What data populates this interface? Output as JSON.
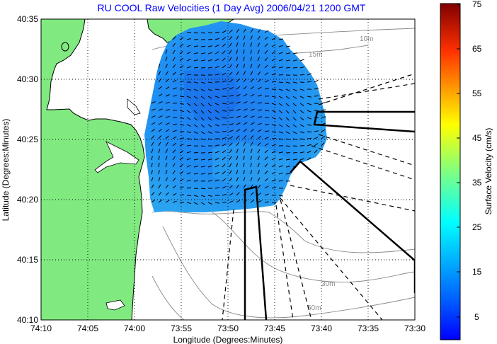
{
  "map": {
    "title": "RU COOL Raw Velocities (1 Day Avg) 2006/04/21 1200 GMT",
    "xlabel": "Longitude (Degrees:Minutes)",
    "ylabel": "Latitude (Degrees:Minutes)",
    "x_ticks": [
      "74:10",
      "74:05",
      "74:00",
      "73:55",
      "73:50",
      "73:45",
      "73:40",
      "73:35",
      "73:30"
    ],
    "y_ticks": [
      "40:35",
      "40:30",
      "40:25",
      "40:20",
      "40:15",
      "40:10"
    ],
    "isobath_labels": [
      "10m",
      "15m",
      "30m",
      "50m"
    ],
    "colors": {
      "land": "#80ea80",
      "water": "#ffffff",
      "title": "#0000ff",
      "grid": "#000000",
      "isobath": "#8a8a8a",
      "velocity_low": "#0080ff",
      "velocity_mid": "#00ffff"
    }
  },
  "colorbar": {
    "label": "Surface Velocity (cm/s)",
    "ticks": [
      "75",
      "65",
      "55",
      "45",
      "35",
      "25",
      "15",
      "5"
    ],
    "range": [
      0,
      75
    ]
  }
}
